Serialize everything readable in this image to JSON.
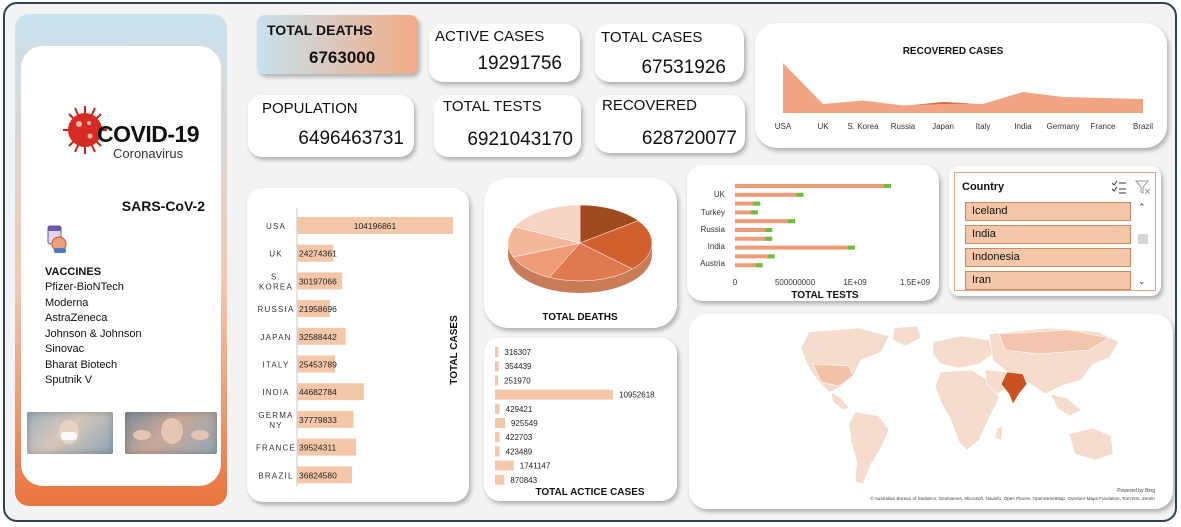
{
  "kpis": {
    "total_deaths": {
      "label": "TOTAL DEATHS",
      "value": "6763000"
    },
    "active_cases": {
      "label": "ACTIVE CASES",
      "value": "19291756"
    },
    "total_cases": {
      "label": "TOTAL CASES",
      "value": "67531926"
    },
    "population": {
      "label": "POPULATION",
      "value": "6496463731"
    },
    "total_tests": {
      "label": "TOTAL TESTS",
      "value": "6921043170"
    },
    "recovered": {
      "label": "RECOVERED",
      "value": "628720077"
    }
  },
  "sidebar": {
    "logo_title": "COVID-19",
    "logo_subtitle": "Coronavirus",
    "virus_name": "SARS-CoV-2",
    "vaccines_heading": "VACCINES",
    "vaccines": [
      "Pfizer-BioNTech",
      "Moderna",
      "AstraZeneca",
      "Johnson & Johnson",
      "Sinovac",
      "Bharat Biotech",
      "Sputnik V"
    ]
  },
  "charts": {
    "recovered_cases": {
      "type": "area",
      "title": "RECOVERED CASES",
      "categories": [
        "USA",
        "UK",
        "S. Korea",
        "Russia",
        "Japan",
        "Italy",
        "India",
        "Germany",
        "France",
        "Brazil"
      ],
      "series": [
        {
          "values": [
            100,
            18,
            25,
            15,
            20,
            18,
            42,
            32,
            30,
            28
          ]
        },
        {
          "values": [
            0,
            0,
            0,
            0,
            14,
            0,
            0,
            0,
            0,
            0
          ]
        }
      ],
      "colors": [
        "#f0a07d",
        "#d9673b"
      ]
    },
    "total_cases": {
      "type": "bar",
      "title": "TOTAL CASES",
      "categories": [
        "USA",
        "UK",
        "S. KOREA",
        "RUSSIA",
        "JAPAN",
        "ITALY",
        "INDIA",
        "GERMA NY",
        "FRANCE",
        "BRAZIL"
      ],
      "values": [
        104196861,
        24274361,
        30197066,
        21958696,
        32588442,
        25453789,
        44682784,
        37779833,
        39524311,
        36824580
      ],
      "value_labels": [
        "104196861",
        "24274361",
        "30197066",
        "21958696",
        "32588442",
        "25453789",
        "44682784",
        "37779833",
        "39524311",
        "36824580"
      ],
      "color": "#f5c7a9"
    },
    "total_deaths": {
      "type": "pie",
      "title": "TOTAL DEATHS",
      "values": [
        15,
        22,
        20,
        12,
        13,
        18
      ],
      "colors": [
        "#a04a1f",
        "#d2602f",
        "#e0794d",
        "#ee9c78",
        "#f3b89c",
        "#f6d3c2"
      ]
    },
    "active_cases": {
      "type": "bar",
      "title": "TOTAL ACTICE CASES",
      "values": [
        316307,
        354439,
        251970,
        10952618,
        429421,
        925549,
        422703,
        423489,
        1741147,
        870843
      ],
      "value_labels": [
        "316307",
        "354439",
        "251970",
        "10952618",
        "429421",
        "925549",
        "422703",
        "423489",
        "1741147",
        "870843"
      ],
      "color": "#f5c7a9"
    },
    "total_tests": {
      "type": "bar",
      "title": "TOTAL TESTS",
      "y_labels": [
        "UK",
        "Turkey",
        "Russia",
        "India",
        "Austria"
      ],
      "values": [
        1300000000,
        570000000,
        210000000,
        190000000,
        500000000,
        310000000,
        310000000,
        1000000000,
        330000000,
        230000000
      ],
      "x_ticks": [
        "0",
        "500000000",
        "1E+09",
        "1.5E+09"
      ],
      "xlim": [
        0,
        1500000000
      ],
      "colors": [
        "#ee9c78",
        "#6cbf3c"
      ]
    }
  },
  "slicer": {
    "title": "Country",
    "items": [
      "Iceland",
      "India",
      "Indonesia",
      "Iran"
    ]
  },
  "map": {
    "powered_by": "Powered by Bing",
    "attribution": "© Australian Bureau of Statistics, GeoNames, Microsoft, Navinfo, Open Places, OpenStreetMap, Overture Maps Fundation, TomTom, Zenrin",
    "highlight_color": "#c9521f"
  }
}
